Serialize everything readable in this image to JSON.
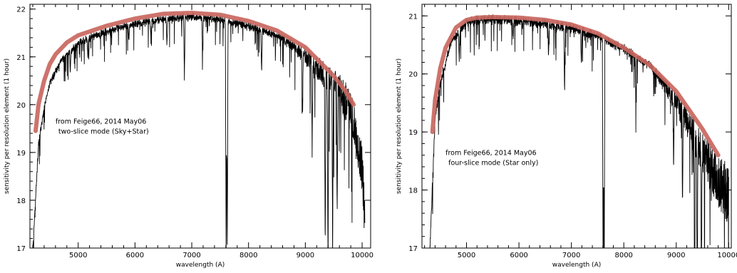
{
  "colors": {
    "axis": "#000000",
    "spectrum": "#000000",
    "envelope": "#c9675f"
  },
  "chart_data": [
    {
      "type": "line",
      "xlabel": "wavelength (A)",
      "ylabel": "sensitivity per resolution element (1 hour)",
      "xlim": [
        4150,
        10150
      ],
      "ylim": [
        17,
        22.1
      ],
      "xticks": [
        5000,
        6000,
        7000,
        8000,
        9000,
        10000
      ],
      "yticks": [
        17,
        18,
        19,
        20,
        21,
        22
      ],
      "annotation": [
        "from Feige66, 2014 May06",
        "two-slice mode (Sky+Star)"
      ],
      "annotation_pos": [
        4600,
        19.6
      ],
      "series": [
        {
          "kind": "spectrum",
          "x": [
            4200,
            4300,
            4400,
            4500,
            4700,
            5000,
            5500,
            6000,
            6500,
            7000,
            7500,
            8000,
            8500,
            9000,
            9500,
            9800,
            10000,
            10050
          ],
          "y": [
            17.0,
            19.2,
            20.0,
            20.5,
            21.0,
            21.35,
            21.6,
            21.75,
            21.85,
            21.9,
            21.85,
            21.7,
            21.5,
            21.2,
            20.8,
            20.3,
            19.2,
            18.1
          ]
        },
        {
          "kind": "envelope",
          "x": [
            4250,
            4300,
            4400,
            4500,
            4600,
            4800,
            5000,
            5500,
            6000,
            6500,
            7000,
            7500,
            8000,
            8500,
            9000,
            9500,
            9700,
            9850
          ],
          "y": [
            19.45,
            20.0,
            20.5,
            20.85,
            21.05,
            21.3,
            21.45,
            21.65,
            21.8,
            21.9,
            21.92,
            21.88,
            21.75,
            21.55,
            21.2,
            20.6,
            20.3,
            20.0
          ]
        }
      ],
      "absorption_lines": [
        {
          "x": 4861,
          "depth": 0.5
        },
        {
          "x": 5170,
          "depth": 0.4
        },
        {
          "x": 5890,
          "depth": 0.35
        },
        {
          "x": 6280,
          "depth": 0.4
        },
        {
          "x": 6563,
          "depth": 0.6
        },
        {
          "x": 6870,
          "depth": 1.3
        },
        {
          "x": 7190,
          "depth": 0.7
        },
        {
          "x": 7605,
          "depth": 5.0
        },
        {
          "x": 7625,
          "depth": 5.0
        },
        {
          "x": 8230,
          "depth": 0.9
        },
        {
          "x": 8950,
          "depth": 1.4
        },
        {
          "x": 9120,
          "depth": 1.8
        },
        {
          "x": 9350,
          "depth": 3.8
        },
        {
          "x": 9400,
          "depth": 4.2
        },
        {
          "x": 9480,
          "depth": 3.5
        },
        {
          "x": 9560,
          "depth": 2.5
        }
      ]
    },
    {
      "type": "line",
      "xlabel": "wavelength (A)",
      "ylabel": "sensitivity per resolution element (1 hour)",
      "xlim": [
        4150,
        10050
      ],
      "ylim": [
        17,
        21.2
      ],
      "xticks": [
        5000,
        6000,
        7000,
        8000,
        9000,
        10000
      ],
      "yticks": [
        17,
        18,
        19,
        20,
        21
      ],
      "annotation": [
        "from Feige66, 2014 May06",
        "four-slice mode (Star only)"
      ],
      "annotation_pos": [
        4600,
        18.6
      ],
      "series": [
        {
          "kind": "spectrum",
          "x": [
            4300,
            4400,
            4500,
            4700,
            5000,
            5500,
            6000,
            6500,
            7000,
            7500,
            8000,
            8500,
            9000,
            9500,
            9800,
            10000
          ],
          "y": [
            17.0,
            19.3,
            19.9,
            20.6,
            20.95,
            21.0,
            20.97,
            20.92,
            20.85,
            20.7,
            20.5,
            20.2,
            19.7,
            19.0,
            18.6,
            18.4
          ]
        },
        {
          "kind": "envelope",
          "x": [
            4350,
            4400,
            4500,
            4600,
            4800,
            5000,
            5200,
            5500,
            6000,
            6500,
            7000,
            7500,
            8000,
            8500,
            9000,
            9500,
            9800
          ],
          "y": [
            19.0,
            19.55,
            20.1,
            20.45,
            20.8,
            20.93,
            20.97,
            20.98,
            20.97,
            20.93,
            20.85,
            20.7,
            20.45,
            20.15,
            19.7,
            19.05,
            18.6
          ]
        }
      ],
      "absorption_lines": [
        {
          "x": 4861,
          "depth": 0.5
        },
        {
          "x": 5890,
          "depth": 0.3
        },
        {
          "x": 6563,
          "depth": 0.6
        },
        {
          "x": 6870,
          "depth": 1.2
        },
        {
          "x": 7190,
          "depth": 0.6
        },
        {
          "x": 7605,
          "depth": 4.5
        },
        {
          "x": 7625,
          "depth": 4.5
        },
        {
          "x": 8230,
          "depth": 0.8
        },
        {
          "x": 8950,
          "depth": 1.2
        },
        {
          "x": 9120,
          "depth": 1.5
        },
        {
          "x": 9350,
          "depth": 2.8
        },
        {
          "x": 9400,
          "depth": 3.0
        },
        {
          "x": 9480,
          "depth": 2.6
        }
      ]
    }
  ]
}
